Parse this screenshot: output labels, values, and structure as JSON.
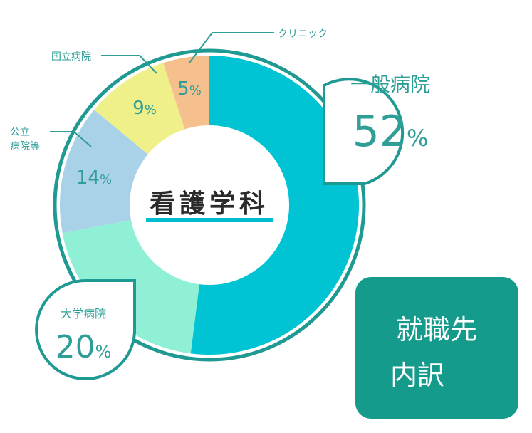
{
  "center_title": "看護学科",
  "box_label_line1": "就職先",
  "box_label_line2": "内訳",
  "colors": {
    "accent": "#1e9a93",
    "box": "#159b8c",
    "ring": "#1e9a93"
  },
  "chart_data": {
    "type": "pie",
    "title": "看護学科",
    "categories": [
      "一般病院",
      "大学病院",
      "公立病院等",
      "国立病院",
      "クリニック"
    ],
    "values": [
      52,
      20,
      14,
      9,
      5
    ],
    "unit": "%",
    "colors": [
      "#00c4d4",
      "#8ff0d6",
      "#a9d1e8",
      "#f0f08a",
      "#f5c08e"
    ],
    "labels": {
      "general": {
        "name": "一般病院",
        "value": "52",
        "unit": "%"
      },
      "university": {
        "name": "大学病院",
        "value": "20",
        "unit": "%"
      },
      "public_line1": "公立",
      "public_line2": "病院等",
      "public_value": "14",
      "national": "国立病院",
      "national_value": "9",
      "clinic": "クリニック",
      "clinic_value": "5",
      "pct": "%"
    }
  }
}
